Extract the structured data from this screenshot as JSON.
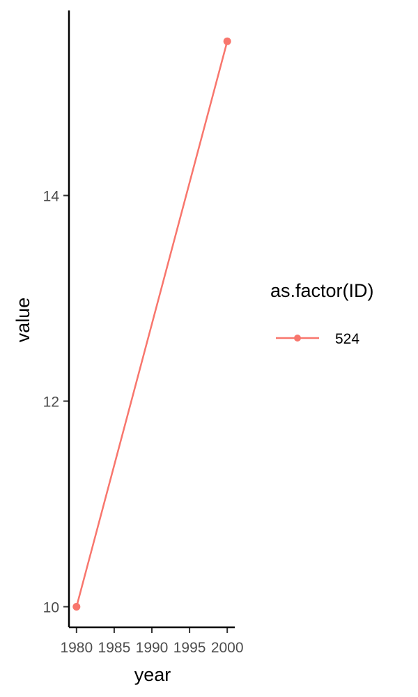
{
  "chart_data": {
    "type": "line",
    "xlabel": "year",
    "ylabel": "value",
    "xlim": [
      1979,
      2001
    ],
    "ylim": [
      9.8,
      15.8
    ],
    "x_ticks": [
      1980,
      1985,
      1990,
      1995,
      2000
    ],
    "y_ticks": [
      10,
      12,
      14
    ],
    "grid": false,
    "legend": {
      "title": "as.factor(ID)",
      "position": "right"
    },
    "series": [
      {
        "name": "524",
        "color": "#F8766D",
        "x": [
          1980,
          2000
        ],
        "y": [
          10.0,
          15.5
        ]
      }
    ]
  }
}
